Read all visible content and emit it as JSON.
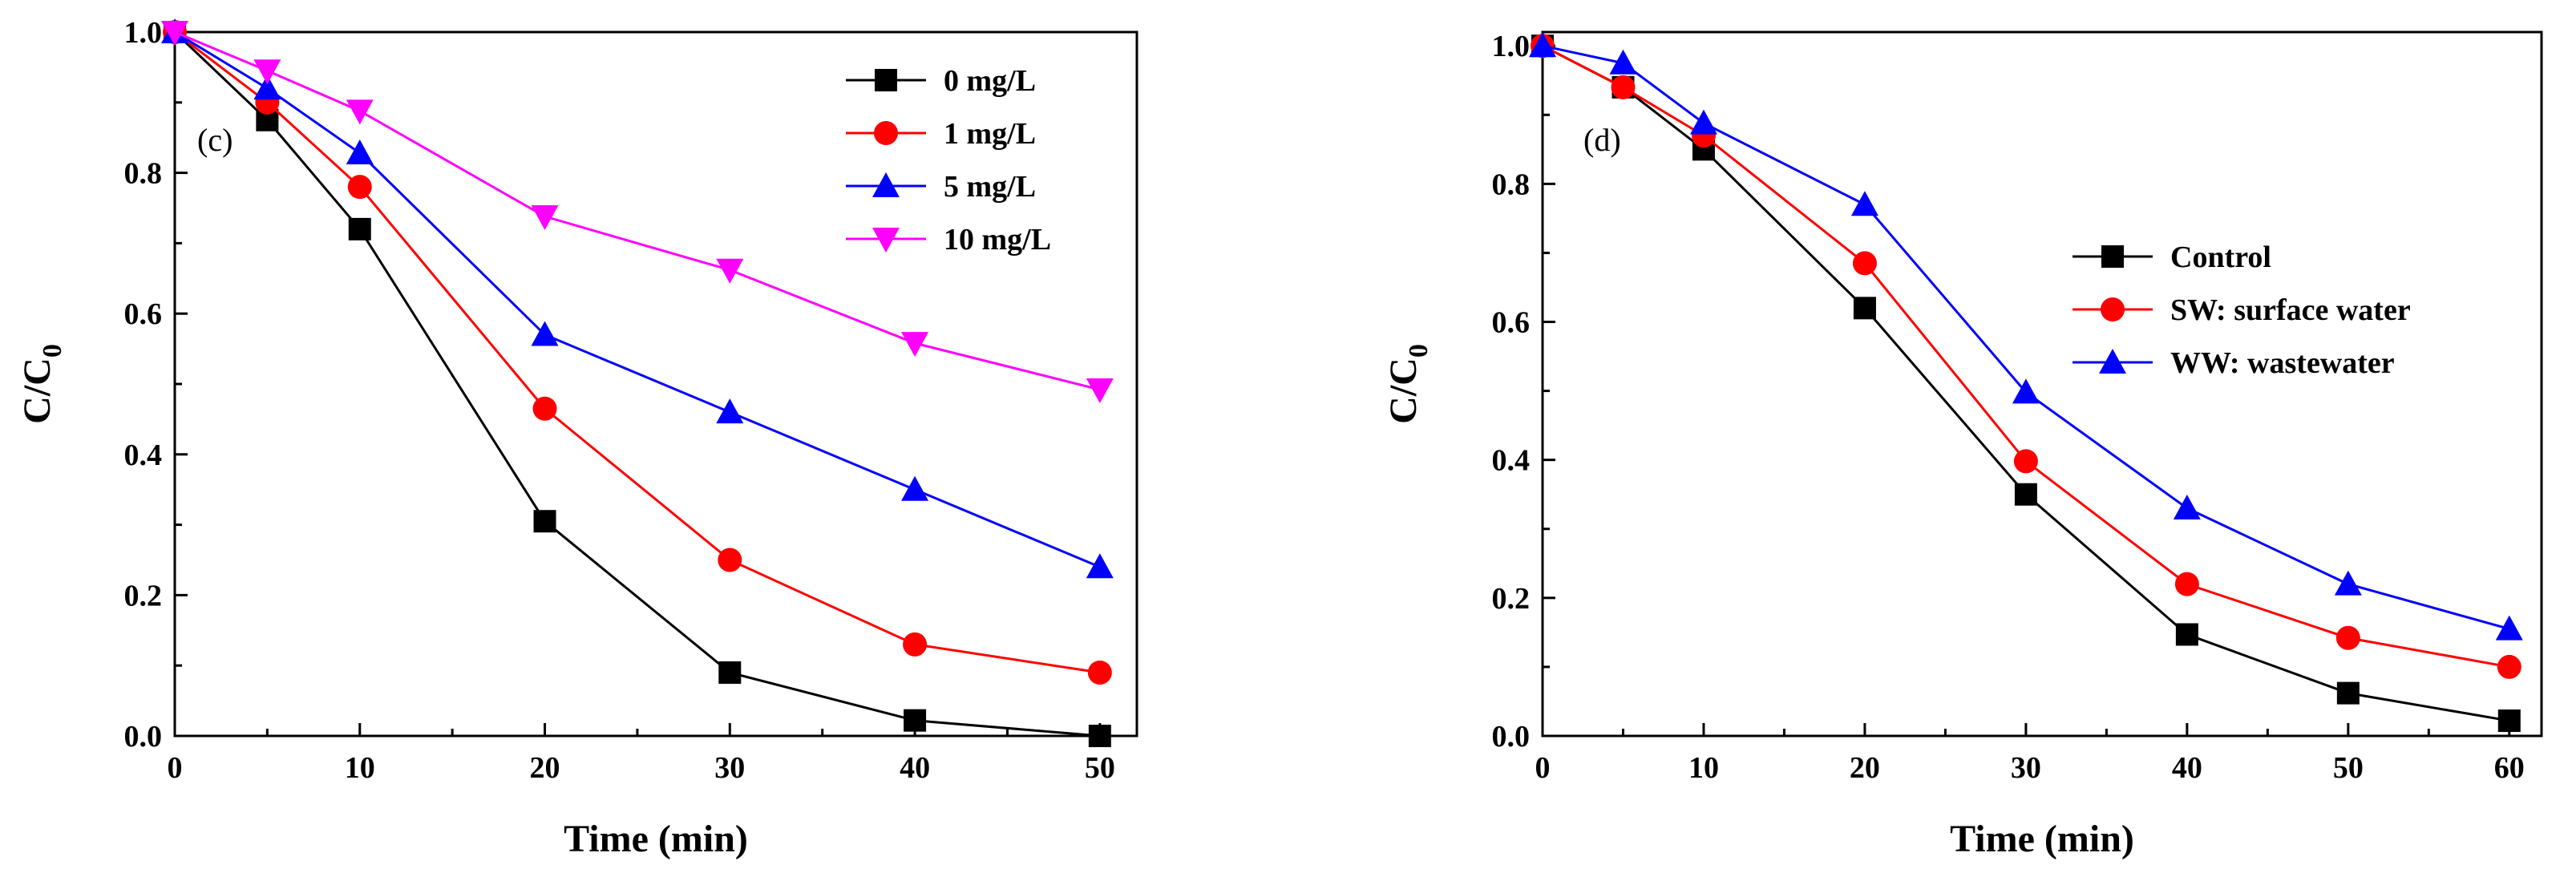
{
  "chart_data": [
    {
      "type": "line",
      "panel_label": "(c)",
      "xlabel": "Time (min)",
      "ylabel": "C/C",
      "ylabel_subscript": "0",
      "xlim": [
        0,
        52
      ],
      "ylim": [
        0,
        1.0
      ],
      "xticks": [
        0,
        10,
        20,
        30,
        40,
        50
      ],
      "xtick_labels": [
        "0",
        "10",
        "20",
        "30",
        "40",
        "50"
      ],
      "yticks": [
        0,
        0.2,
        0.4,
        0.6,
        0.8,
        1.0
      ],
      "ytick_labels": [
        "0.0",
        "0.2",
        "0.4",
        "0.6",
        "0.8",
        "1.0"
      ],
      "legend_position": "top-right",
      "x": [
        0,
        5,
        10,
        20,
        30,
        40,
        50
      ],
      "series": [
        {
          "name": "0 mg/L",
          "color": "#000000",
          "marker": "square",
          "values": [
            1.0,
            0.875,
            0.72,
            0.305,
            0.09,
            0.022,
            0.0
          ]
        },
        {
          "name": "1 mg/L",
          "color": "#ff0000",
          "marker": "circle",
          "values": [
            1.0,
            0.9,
            0.78,
            0.465,
            0.25,
            0.13,
            0.09
          ]
        },
        {
          "name": "5 mg/L",
          "color": "#0000ff",
          "marker": "triangle-up",
          "values": [
            1.0,
            0.92,
            0.828,
            0.57,
            0.46,
            0.35,
            0.24
          ]
        },
        {
          "name": "10 mg/L",
          "color": "#ff00ff",
          "marker": "triangle-down",
          "values": [
            1.0,
            0.945,
            0.888,
            0.738,
            0.662,
            0.558,
            0.492
          ]
        }
      ]
    },
    {
      "type": "line",
      "panel_label": "(d)",
      "xlabel": "Time (min)",
      "ylabel": "C/C",
      "ylabel_subscript": "0",
      "xlim": [
        0,
        62
      ],
      "ylim": [
        0,
        1.02
      ],
      "xticks": [
        0,
        10,
        20,
        30,
        40,
        50,
        60
      ],
      "xtick_labels": [
        "0",
        "10",
        "20",
        "30",
        "40",
        "50",
        "60"
      ],
      "yticks": [
        0,
        0.2,
        0.4,
        0.6,
        0.8,
        1.0
      ],
      "ytick_labels": [
        "0.0",
        "0.2",
        "0.4",
        "0.6",
        "0.8",
        "1.0"
      ],
      "legend_position": "center-right",
      "x": [
        0,
        5,
        10,
        20,
        30,
        40,
        50,
        60
      ],
      "series": [
        {
          "name": "Control",
          "color": "#000000",
          "marker": "square",
          "values": [
            1.0,
            0.94,
            0.85,
            0.62,
            0.35,
            0.147,
            0.062,
            0.022
          ]
        },
        {
          "name": "SW: surface water",
          "color": "#ff0000",
          "marker": "circle",
          "values": [
            1.0,
            0.94,
            0.87,
            0.685,
            0.398,
            0.22,
            0.142,
            0.1
          ]
        },
        {
          "name": "WW: wastewater",
          "color": "#0000ff",
          "marker": "triangle-up",
          "values": [
            1.0,
            0.975,
            0.888,
            0.77,
            0.498,
            0.33,
            0.22,
            0.155
          ]
        }
      ]
    }
  ]
}
